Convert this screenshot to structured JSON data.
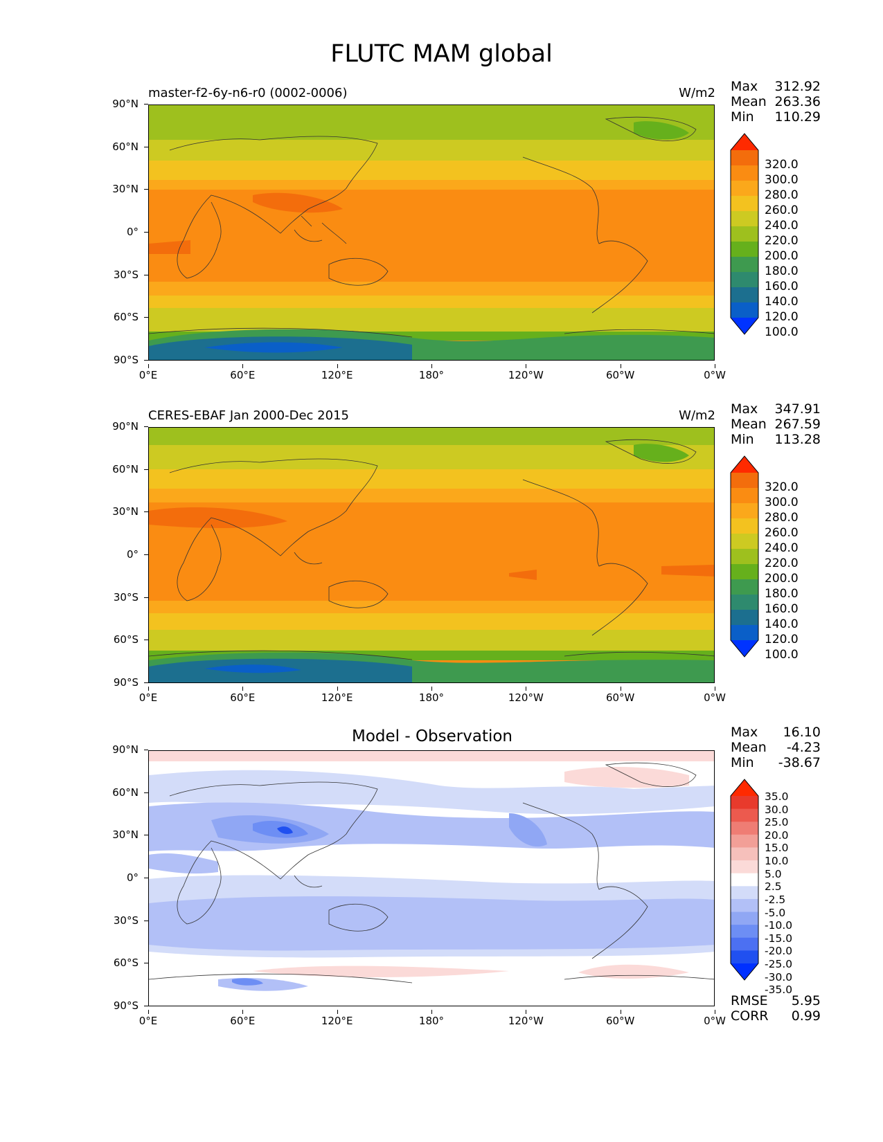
{
  "figure_title": "FLUTC MAM global",
  "colors": {
    "abs_levels": [
      "#0033ff",
      "#0a5fc8",
      "#1c6f8f",
      "#2e8a6e",
      "#3e9a4f",
      "#66b01c",
      "#9ec01e",
      "#cdca22",
      "#f3c21f",
      "#fba81b",
      "#fa8c12",
      "#f36d0c",
      "#ff2a00"
    ],
    "diff_levels": [
      "#0030ff",
      "#2050f0",
      "#4c70f2",
      "#6d8ef4",
      "#90a7f4",
      "#b2c0f7",
      "#d3dcf9",
      "#ffffff",
      "#fbdad8",
      "#f6c0bb",
      "#f29f97",
      "#ef7d74",
      "#ec5a4e",
      "#e83a2c",
      "#ff2a00"
    ]
  },
  "x_ticks": [
    "0°E",
    "60°E",
    "120°E",
    "180°",
    "120°W",
    "60°W",
    "0°W"
  ],
  "y_ticks": [
    "90°N",
    "60°N",
    "30°N",
    "0°",
    "30°S",
    "60°S",
    "90°S"
  ],
  "panels": [
    {
      "id": "model",
      "title_left": "master-f2-6y-n6-r0 (0002-0006)",
      "title_right": "W/m2",
      "stats": [
        [
          "Max",
          "312.92"
        ],
        [
          "Mean",
          "263.36"
        ],
        [
          "Min",
          "110.29"
        ]
      ],
      "colorbar_labels": [
        "320.0",
        "300.0",
        "280.0",
        "260.0",
        "240.0",
        "220.0",
        "200.0",
        "180.0",
        "160.0",
        "140.0",
        "120.0",
        "100.0"
      ]
    },
    {
      "id": "obs",
      "title_left": "CERES-EBAF Jan 2000-Dec 2015",
      "title_right": "W/m2",
      "stats": [
        [
          "Max",
          "347.91"
        ],
        [
          "Mean",
          "267.59"
        ],
        [
          "Min",
          "113.28"
        ]
      ],
      "colorbar_labels": [
        "320.0",
        "300.0",
        "280.0",
        "260.0",
        "240.0",
        "220.0",
        "200.0",
        "180.0",
        "160.0",
        "140.0",
        "120.0",
        "100.0"
      ]
    },
    {
      "id": "diff",
      "title_center": "Model - Observation",
      "stats": [
        [
          "Max",
          "16.10"
        ],
        [
          "Mean",
          "-4.23"
        ],
        [
          "Min",
          "-38.67"
        ]
      ],
      "colorbar_labels": [
        "35.0",
        "30.0",
        "25.0",
        "20.0",
        "15.0",
        "10.0",
        "5.0",
        "2.5",
        "-2.5",
        "-5.0",
        "-10.0",
        "-15.0",
        "-20.0",
        "-25.0",
        "-30.0",
        "-35.0"
      ],
      "metrics": [
        [
          "RMSE",
          "5.95"
        ],
        [
          "CORR",
          "0.99"
        ]
      ]
    }
  ]
}
